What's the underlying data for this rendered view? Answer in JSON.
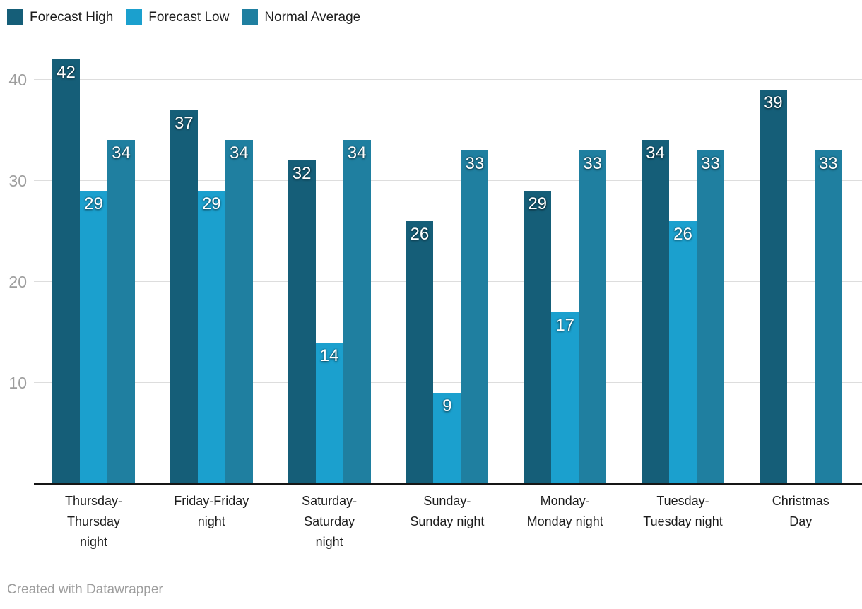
{
  "legend": {
    "items": [
      {
        "label": "Forecast High"
      },
      {
        "label": "Forecast Low"
      },
      {
        "label": "Normal Average"
      }
    ]
  },
  "chart_data": {
    "type": "bar",
    "categories": [
      "Thursday-Thursday night",
      "Friday-Friday night",
      "Saturday-Saturday night",
      "Sunday-Sunday night",
      "Monday-Monday night",
      "Tuesday-Tuesday night",
      "Christmas Day"
    ],
    "category_label_lines": [
      [
        "Thursday-",
        "Thursday",
        "night"
      ],
      [
        "Friday-Friday",
        "night"
      ],
      [
        "Saturday-",
        "Saturday",
        "night"
      ],
      [
        "Sunday-",
        "Sunday night"
      ],
      [
        "Monday-",
        "Monday night"
      ],
      [
        "Tuesday-",
        "Tuesday night"
      ],
      [
        "Christmas",
        "Day"
      ]
    ],
    "series": [
      {
        "name": "Forecast High",
        "color": "#155e78",
        "values": [
          42,
          37,
          32,
          26,
          29,
          34,
          39
        ]
      },
      {
        "name": "Forecast Low",
        "color": "#1ba0ce",
        "values": [
          29,
          29,
          14,
          9,
          17,
          26,
          null
        ]
      },
      {
        "name": "Normal Average",
        "color": "#1f7fa0",
        "values": [
          34,
          34,
          34,
          33,
          33,
          33,
          33
        ]
      }
    ],
    "y_ticks": [
      10,
      20,
      30,
      40
    ],
    "ylim": [
      0,
      43.5
    ],
    "grid": "horizontal-only",
    "legend_position": "top-left",
    "bar_value_labels": true
  },
  "footer": {
    "credit": "Created with Datawrapper"
  },
  "colors": {
    "background": "#ffffff",
    "grid": "#dddddd",
    "axis_line": "#161616",
    "tick_label": "#9d9d9d",
    "category_label": "#1d1d1d",
    "value_label": "#ffffff"
  }
}
